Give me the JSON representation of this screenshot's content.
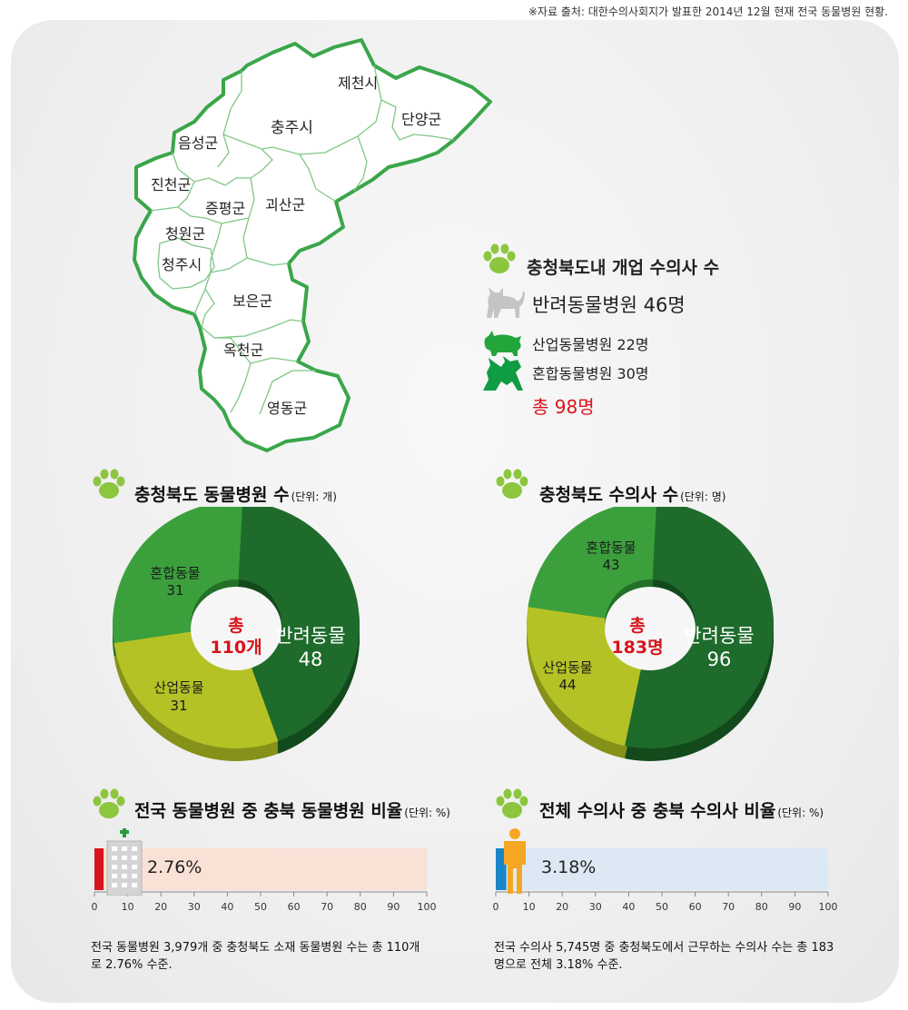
{
  "source_note": "※자료 출처: 대한수의사회지가 발표한 2014년 12월 현재 전국 동물병원 현황.",
  "colors": {
    "pet": "#1e6b2c",
    "mixed": "#3ba03c",
    "industrial": "#b5c226",
    "total_red": "#d8141c",
    "map_border": "#3aa64a"
  },
  "map": {
    "regions": [
      "제천시",
      "단양군",
      "충주시",
      "음성군",
      "진천군",
      "증평군",
      "괴산군",
      "청원군",
      "청주시",
      "보은군",
      "옥천군",
      "영동군"
    ]
  },
  "vet_count": {
    "title": "충청북도내 개업 수의사 수",
    "rows": [
      {
        "label": "반려동물병원 46명",
        "icon": "cat-icon"
      },
      {
        "label": "산업동물병원 22명",
        "icon": "pig-icon"
      },
      {
        "label": "혼합동물병원 30명",
        "icon": "dog-cow-icon"
      }
    ],
    "total": "총 98명"
  },
  "charts": {
    "hospitals": {
      "title": "충청북도 동물병원 수",
      "unit": "(단위: 개)",
      "center_top": "총",
      "center_bottom": "110개"
    },
    "vets": {
      "title": "충청북도 수의사 수",
      "unit": "(단위: 명)",
      "center_top": "총",
      "center_bottom": "183명"
    },
    "hospital_ratio": {
      "title": "전국 동물병원 중 충북 동물병원 비율",
      "unit": "(단위: %)",
      "value_label": "2.76%",
      "note": "전국 동물병원 3,979개 중 충청북도 소재 동물병원 수는 총 110개로 2.76% 수준."
    },
    "vet_ratio": {
      "title": "전체 수의사 중 충북 수의사 비율",
      "unit": "(단위: %)",
      "value_label": "3.18%",
      "note": "전국 수의사 5,745명 중 충청북도에서 근무하는 수의사 수는 총 183명으로 전체 3.18% 수준."
    },
    "axis_ticks": [
      "0",
      "10",
      "20",
      "30",
      "40",
      "50",
      "60",
      "70",
      "80",
      "90",
      "100"
    ]
  },
  "chart_data": [
    {
      "type": "pie",
      "title": "충청북도 동물병원 수",
      "unit": "개",
      "categories": [
        "반려동물",
        "산업동물",
        "혼합동물"
      ],
      "values": [
        48,
        31,
        31
      ],
      "total": 110
    },
    {
      "type": "pie",
      "title": "충청북도 수의사 수",
      "unit": "명",
      "categories": [
        "반려동물",
        "산업동물",
        "혼합동물"
      ],
      "values": [
        96,
        44,
        43
      ],
      "total": 183
    },
    {
      "type": "bar",
      "title": "전국 동물병원 중 충북 동물병원 비율",
      "unit": "%",
      "values": [
        2.76
      ],
      "xlim": [
        0,
        100
      ]
    },
    {
      "type": "bar",
      "title": "전체 수의사 중 충북 수의사 비율",
      "unit": "%",
      "values": [
        3.18
      ],
      "xlim": [
        0,
        100
      ]
    }
  ]
}
